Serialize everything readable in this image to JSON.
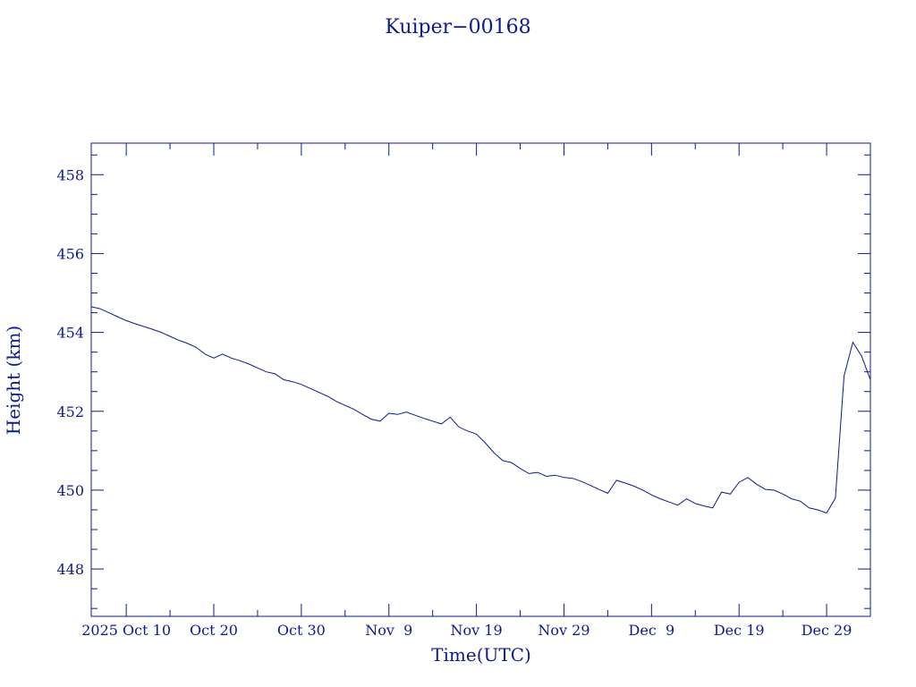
{
  "chart_data": {
    "type": "line",
    "title": "Kuiper−00168",
    "xlabel": "Time(UTC)",
    "ylabel": "Height (km)",
    "color": "#0b1a8f",
    "grid": false,
    "xlim": [
      "2025-10-06",
      "2026-01-03"
    ],
    "ylim": [
      446.8,
      458.8
    ],
    "y_ticks": [
      448,
      450,
      452,
      454,
      456,
      458
    ],
    "x_ticks": [
      {
        "date": "2025-10-10",
        "label": "2025 Oct 10"
      },
      {
        "date": "2025-10-20",
        "label": "Oct 20"
      },
      {
        "date": "2025-10-30",
        "label": "Oct 30"
      },
      {
        "date": "2025-11-09",
        "label": "Nov  9"
      },
      {
        "date": "2025-11-19",
        "label": "Nov 19"
      },
      {
        "date": "2025-11-29",
        "label": "Nov 29"
      },
      {
        "date": "2025-12-09",
        "label": "Dec  9"
      },
      {
        "date": "2025-12-19",
        "label": "Dec 19"
      },
      {
        "date": "2025-12-29",
        "label": "Dec 29"
      }
    ],
    "series": [
      {
        "values": [
          [
            "2025-10-06",
            454.65
          ],
          [
            "2025-10-07",
            454.6
          ],
          [
            "2025-10-08",
            454.5
          ],
          [
            "2025-10-09",
            454.4
          ],
          [
            "2025-10-10",
            454.3
          ],
          [
            "2025-10-11",
            454.22
          ],
          [
            "2025-10-12",
            454.15
          ],
          [
            "2025-10-13",
            454.08
          ],
          [
            "2025-10-14",
            454.0
          ],
          [
            "2025-10-15",
            453.9
          ],
          [
            "2025-10-16",
            453.8
          ],
          [
            "2025-10-17",
            453.72
          ],
          [
            "2025-10-18",
            453.62
          ],
          [
            "2025-10-19",
            453.45
          ],
          [
            "2025-10-20",
            453.35
          ],
          [
            "2025-10-21",
            453.45
          ],
          [
            "2025-10-22",
            453.35
          ],
          [
            "2025-10-23",
            453.28
          ],
          [
            "2025-10-24",
            453.2
          ],
          [
            "2025-10-25",
            453.1
          ],
          [
            "2025-10-26",
            453.0
          ],
          [
            "2025-10-27",
            452.95
          ],
          [
            "2025-10-28",
            452.8
          ],
          [
            "2025-10-29",
            452.75
          ],
          [
            "2025-10-30",
            452.68
          ],
          [
            "2025-10-31",
            452.58
          ],
          [
            "2025-11-01",
            452.48
          ],
          [
            "2025-11-02",
            452.38
          ],
          [
            "2025-11-03",
            452.25
          ],
          [
            "2025-11-04",
            452.15
          ],
          [
            "2025-11-05",
            452.05
          ],
          [
            "2025-11-06",
            451.92
          ],
          [
            "2025-11-07",
            451.8
          ],
          [
            "2025-11-08",
            451.75
          ],
          [
            "2025-11-09",
            451.95
          ],
          [
            "2025-11-10",
            451.92
          ],
          [
            "2025-11-11",
            451.98
          ],
          [
            "2025-11-12",
            451.9
          ],
          [
            "2025-11-13",
            451.82
          ],
          [
            "2025-11-14",
            451.75
          ],
          [
            "2025-11-15",
            451.68
          ],
          [
            "2025-11-16",
            451.85
          ],
          [
            "2025-11-17",
            451.6
          ],
          [
            "2025-11-18",
            451.5
          ],
          [
            "2025-11-19",
            451.42
          ],
          [
            "2025-11-20",
            451.2
          ],
          [
            "2025-11-21",
            450.95
          ],
          [
            "2025-11-22",
            450.75
          ],
          [
            "2025-11-23",
            450.7
          ],
          [
            "2025-11-24",
            450.55
          ],
          [
            "2025-11-25",
            450.42
          ],
          [
            "2025-11-26",
            450.45
          ],
          [
            "2025-11-27",
            450.35
          ],
          [
            "2025-11-28",
            450.38
          ],
          [
            "2025-11-29",
            450.32
          ],
          [
            "2025-11-30",
            450.3
          ],
          [
            "2025-12-01",
            450.22
          ],
          [
            "2025-12-02",
            450.12
          ],
          [
            "2025-12-03",
            450.02
          ],
          [
            "2025-12-04",
            449.92
          ],
          [
            "2025-12-05",
            450.25
          ],
          [
            "2025-12-06",
            450.18
          ],
          [
            "2025-12-07",
            450.1
          ],
          [
            "2025-12-08",
            450.0
          ],
          [
            "2025-12-09",
            449.88
          ],
          [
            "2025-12-10",
            449.78
          ],
          [
            "2025-12-11",
            449.7
          ],
          [
            "2025-12-12",
            449.62
          ],
          [
            "2025-12-13",
            449.78
          ],
          [
            "2025-12-14",
            449.66
          ],
          [
            "2025-12-15",
            449.6
          ],
          [
            "2025-12-16",
            449.55
          ],
          [
            "2025-12-17",
            449.95
          ],
          [
            "2025-12-18",
            449.9
          ],
          [
            "2025-12-19",
            450.2
          ],
          [
            "2025-12-20",
            450.32
          ],
          [
            "2025-12-21",
            450.15
          ],
          [
            "2025-12-22",
            450.02
          ],
          [
            "2025-12-23",
            450.0
          ],
          [
            "2025-12-24",
            449.9
          ],
          [
            "2025-12-25",
            449.78
          ],
          [
            "2025-12-26",
            449.72
          ],
          [
            "2025-12-27",
            449.55
          ],
          [
            "2025-12-28",
            449.5
          ],
          [
            "2025-12-29",
            449.42
          ],
          [
            "2025-12-30",
            449.8
          ],
          [
            "2025-12-31",
            452.9
          ],
          [
            "2026-01-01",
            453.75
          ],
          [
            "2026-01-02",
            453.4
          ],
          [
            "2026-01-03",
            452.8
          ]
        ]
      }
    ]
  }
}
